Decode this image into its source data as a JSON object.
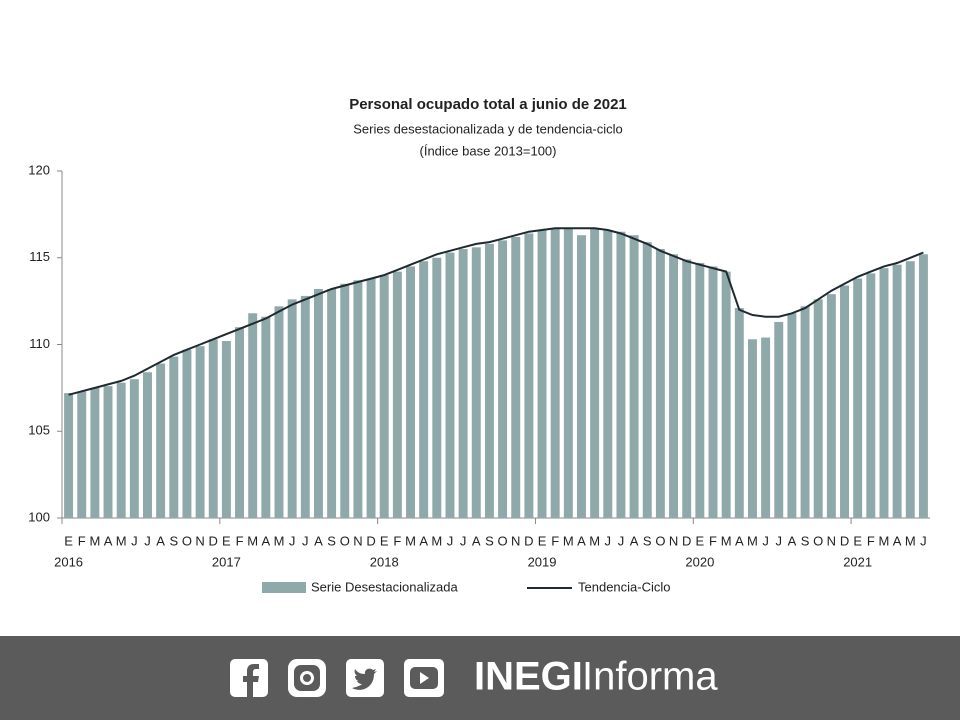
{
  "chart_data": {
    "type": "bar_line",
    "title": "Personal ocupado total a junio de 2021",
    "subtitle": "Series desestacionalizada y de tendencia-ciclo",
    "subtitle2": "(Índice base 2013=100)",
    "categories": [
      "E",
      "F",
      "M",
      "A",
      "M",
      "J",
      "J",
      "A",
      "S",
      "O",
      "N",
      "D",
      "E",
      "F",
      "M",
      "A",
      "M",
      "J",
      "J",
      "A",
      "S",
      "O",
      "N",
      "D",
      "E",
      "F",
      "M",
      "A",
      "M",
      "J",
      "J",
      "A",
      "S",
      "O",
      "N",
      "D",
      "E",
      "F",
      "M",
      "A",
      "M",
      "J",
      "J",
      "A",
      "S",
      "O",
      "N",
      "D",
      "E",
      "F",
      "M",
      "A",
      "M",
      "J",
      "J",
      "A",
      "S",
      "O",
      "N",
      "D",
      "E",
      "F",
      "M",
      "A",
      "M",
      "J"
    ],
    "years": [
      "2016",
      null,
      null,
      null,
      null,
      null,
      null,
      null,
      null,
      null,
      null,
      null,
      "2017",
      null,
      null,
      null,
      null,
      null,
      null,
      null,
      null,
      null,
      null,
      null,
      "2018",
      null,
      null,
      null,
      null,
      null,
      null,
      null,
      null,
      null,
      null,
      null,
      "2019",
      null,
      null,
      null,
      null,
      null,
      null,
      null,
      null,
      null,
      null,
      null,
      "2020",
      null,
      null,
      null,
      null,
      null,
      null,
      null,
      null,
      null,
      null,
      null,
      "2021",
      null,
      null,
      null,
      null,
      null
    ],
    "series": [
      {
        "name": "Serie Desestacionalizada",
        "color": "#8fa8aa",
        "values": [
          107.2,
          107.3,
          107.5,
          107.6,
          107.8,
          108.0,
          108.4,
          108.9,
          109.3,
          109.7,
          109.9,
          110.3,
          110.2,
          111.0,
          111.8,
          111.6,
          112.2,
          112.6,
          112.8,
          113.2,
          113.2,
          113.5,
          113.7,
          113.8,
          114.0,
          114.2,
          114.5,
          114.8,
          115.0,
          115.3,
          115.5,
          115.6,
          115.8,
          116.0,
          116.2,
          116.4,
          116.6,
          116.7,
          116.7,
          116.3,
          116.7,
          116.6,
          116.5,
          116.3,
          115.9,
          115.5,
          115.2,
          114.9,
          114.7,
          114.5,
          114.2,
          112.1,
          110.3,
          110.4,
          111.3,
          111.8,
          112.2,
          112.6,
          112.9,
          113.4,
          113.8,
          114.1,
          114.4,
          114.6,
          114.8,
          115.2
        ]
      },
      {
        "name": "Tendencia-Ciclo",
        "color": "#1e2a30",
        "values": [
          107.1,
          107.3,
          107.5,
          107.7,
          107.9,
          108.2,
          108.6,
          109.0,
          109.4,
          109.7,
          110.0,
          110.3,
          110.6,
          110.9,
          111.2,
          111.5,
          111.9,
          112.3,
          112.6,
          112.9,
          113.2,
          113.4,
          113.6,
          113.8,
          114.0,
          114.3,
          114.6,
          114.9,
          115.2,
          115.4,
          115.6,
          115.8,
          115.9,
          116.1,
          116.3,
          116.5,
          116.6,
          116.7,
          116.7,
          116.7,
          116.7,
          116.6,
          116.4,
          116.1,
          115.8,
          115.4,
          115.1,
          114.8,
          114.6,
          114.4,
          114.2,
          112.0,
          111.7,
          111.6,
          111.6,
          111.8,
          112.1,
          112.6,
          113.1,
          113.5,
          113.9,
          114.2,
          114.5,
          114.7,
          115.0,
          115.3
        ]
      }
    ],
    "ylim": [
      100,
      120
    ],
    "yticks": [
      100,
      105,
      110,
      115,
      120
    ]
  },
  "footer": {
    "brand": "INEGI",
    "brand2": "Informa"
  }
}
